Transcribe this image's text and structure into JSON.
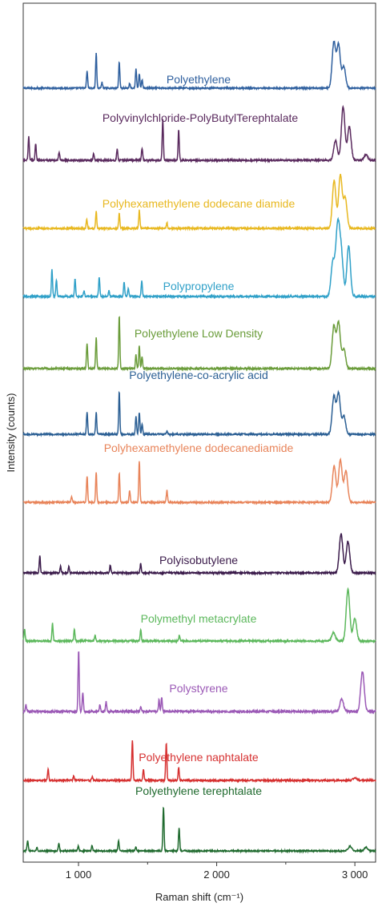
{
  "chart_data": {
    "type": "line",
    "title": "",
    "xlabel": "Raman shift (cm⁻¹)",
    "ylabel": "Intensity (counts)",
    "xlim": [
      600,
      3150
    ],
    "x_ticks": [
      {
        "value": 1000,
        "label": "1 000"
      },
      {
        "value": 2000,
        "label": "2 000"
      },
      {
        "value": 3000,
        "label": "3 000"
      }
    ],
    "grid": false,
    "series": [
      {
        "name": "Polyethylene",
        "color": "#2e5f9e",
        "peaks": [
          [
            1062,
            0.35
          ],
          [
            1128,
            0.72
          ],
          [
            1170,
            0.12
          ],
          [
            1295,
            0.55
          ],
          [
            1370,
            0.1
          ],
          [
            1416,
            0.4
          ],
          [
            1440,
            0.3
          ],
          [
            1460,
            0.18
          ],
          [
            2848,
            0.95
          ],
          [
            2882,
            0.9
          ],
          [
            2920,
            0.45
          ]
        ]
      },
      {
        "name": "Polyvinylchloride-PolyButylTerephtalate",
        "color": "#5a2a5e",
        "peaks": [
          [
            640,
            0.42
          ],
          [
            690,
            0.3
          ],
          [
            860,
            0.15
          ],
          [
            1110,
            0.12
          ],
          [
            1280,
            0.2
          ],
          [
            1460,
            0.22
          ],
          [
            1610,
            0.72
          ],
          [
            1725,
            0.55
          ],
          [
            2860,
            0.35
          ],
          [
            2915,
            0.95
          ],
          [
            2960,
            0.6
          ],
          [
            3080,
            0.1
          ]
        ]
      },
      {
        "name": "Polyhexamethylene dodecane diamide",
        "color": "#e8b820",
        "peaks": [
          [
            1060,
            0.15
          ],
          [
            1128,
            0.3
          ],
          [
            1295,
            0.28
          ],
          [
            1440,
            0.32
          ],
          [
            1640,
            0.1
          ],
          [
            2850,
            0.85
          ],
          [
            2895,
            0.95
          ],
          [
            2930,
            0.55
          ]
        ]
      },
      {
        "name": "Polypropylene",
        "color": "#2fa0c8",
        "peaks": [
          [
            808,
            0.48
          ],
          [
            840,
            0.3
          ],
          [
            975,
            0.3
          ],
          [
            1040,
            0.1
          ],
          [
            1150,
            0.35
          ],
          [
            1220,
            0.1
          ],
          [
            1330,
            0.25
          ],
          [
            1360,
            0.15
          ],
          [
            1458,
            0.28
          ],
          [
            2840,
            0.6
          ],
          [
            2870,
            0.8
          ],
          [
            2885,
            0.75
          ],
          [
            2905,
            0.6
          ],
          [
            2955,
            0.9
          ]
        ]
      },
      {
        "name": "Polyethylene Low Density",
        "color": "#6a9c3a",
        "peaks": [
          [
            1062,
            0.45
          ],
          [
            1128,
            0.55
          ],
          [
            1295,
            0.95
          ],
          [
            1416,
            0.25
          ],
          [
            1440,
            0.4
          ],
          [
            1460,
            0.22
          ],
          [
            2848,
            0.75
          ],
          [
            2882,
            0.82
          ],
          [
            2920,
            0.35
          ]
        ]
      },
      {
        "name": "Polyethylene-co-acrylic acid",
        "color": "#2b5f94",
        "peaks": [
          [
            1062,
            0.42
          ],
          [
            1128,
            0.42
          ],
          [
            1295,
            0.82
          ],
          [
            1416,
            0.35
          ],
          [
            1440,
            0.42
          ],
          [
            1460,
            0.2
          ],
          [
            1640,
            0.05
          ],
          [
            2848,
            0.72
          ],
          [
            2882,
            0.78
          ],
          [
            2920,
            0.35
          ]
        ]
      },
      {
        "name": "Polyhexamethylene dodecanediamide",
        "color": "#e8845a",
        "peaks": [
          [
            950,
            0.12
          ],
          [
            1062,
            0.55
          ],
          [
            1128,
            0.62
          ],
          [
            1295,
            0.62
          ],
          [
            1370,
            0.25
          ],
          [
            1440,
            0.85
          ],
          [
            1640,
            0.25
          ],
          [
            2850,
            0.75
          ],
          [
            2895,
            0.88
          ],
          [
            2935,
            0.65
          ]
        ]
      },
      {
        "name": "Polyisobutylene",
        "color": "#3a1a4a",
        "peaks": [
          [
            720,
            0.32
          ],
          [
            870,
            0.12
          ],
          [
            930,
            0.12
          ],
          [
            1230,
            0.15
          ],
          [
            1450,
            0.18
          ],
          [
            2900,
            0.75
          ],
          [
            2950,
            0.6
          ]
        ]
      },
      {
        "name": "Polymethyl metacrylate",
        "color": "#5cb85c",
        "peaks": [
          [
            610,
            0.2
          ],
          [
            812,
            0.32
          ],
          [
            970,
            0.2
          ],
          [
            1120,
            0.1
          ],
          [
            1450,
            0.2
          ],
          [
            1730,
            0.1
          ],
          [
            2845,
            0.15
          ],
          [
            2950,
            0.92
          ],
          [
            3000,
            0.4
          ]
        ]
      },
      {
        "name": "Polystyrene",
        "color": "#9b59b6",
        "peaks": [
          [
            620,
            0.1
          ],
          [
            1001,
            0.95
          ],
          [
            1031,
            0.3
          ],
          [
            1155,
            0.1
          ],
          [
            1200,
            0.15
          ],
          [
            1450,
            0.08
          ],
          [
            1583,
            0.18
          ],
          [
            1602,
            0.22
          ],
          [
            2905,
            0.2
          ],
          [
            3055,
            0.62
          ]
        ]
      },
      {
        "name": "Polyethylene naphtalate",
        "color": "#d63030",
        "peaks": [
          [
            780,
            0.22
          ],
          [
            965,
            0.08
          ],
          [
            1100,
            0.08
          ],
          [
            1390,
            0.78
          ],
          [
            1470,
            0.2
          ],
          [
            1635,
            0.72
          ],
          [
            1725,
            0.25
          ],
          [
            3000,
            0.05
          ]
        ]
      },
      {
        "name": "Polyethylene terephtalate",
        "color": "#1f6a2e",
        "peaks": [
          [
            632,
            0.22
          ],
          [
            700,
            0.08
          ],
          [
            858,
            0.15
          ],
          [
            998,
            0.1
          ],
          [
            1098,
            0.12
          ],
          [
            1290,
            0.22
          ],
          [
            1415,
            0.08
          ],
          [
            1615,
            0.95
          ],
          [
            1728,
            0.5
          ],
          [
            2965,
            0.1
          ],
          [
            3080,
            0.08
          ]
        ]
      }
    ]
  }
}
